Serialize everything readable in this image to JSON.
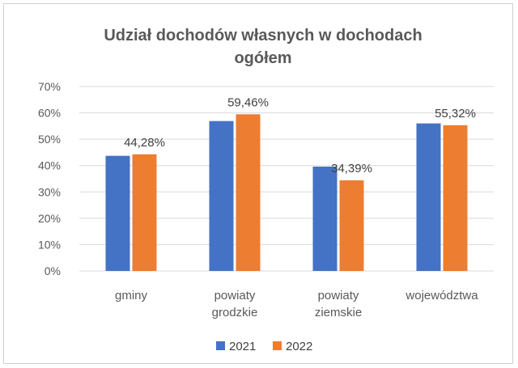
{
  "chart_data": {
    "type": "bar",
    "title": "Udział dochodów własnych w dochodach ogółem",
    "title_lines": [
      "Udział dochodów własnych w dochodach",
      "ogółem"
    ],
    "categories": [
      [
        "gminy"
      ],
      [
        "powiaty",
        "grodzkie"
      ],
      [
        "powiaty",
        "ziemskie"
      ],
      [
        "województwa"
      ]
    ],
    "series": [
      {
        "name": "2021",
        "color": "#4472C4",
        "values": [
          43.7,
          56.9,
          39.6,
          56.0
        ]
      },
      {
        "name": "2022",
        "color": "#ED7D31",
        "values": [
          44.28,
          59.46,
          34.39,
          55.32
        ]
      }
    ],
    "data_labels": [
      "44,28%",
      "59,46%",
      "34,39%",
      "55,32%"
    ],
    "y_ticks": [
      "0%",
      "10%",
      "20%",
      "30%",
      "40%",
      "50%",
      "60%",
      "70%"
    ],
    "ylim": [
      0,
      70
    ],
    "grid": true,
    "legend_position": "bottom"
  }
}
